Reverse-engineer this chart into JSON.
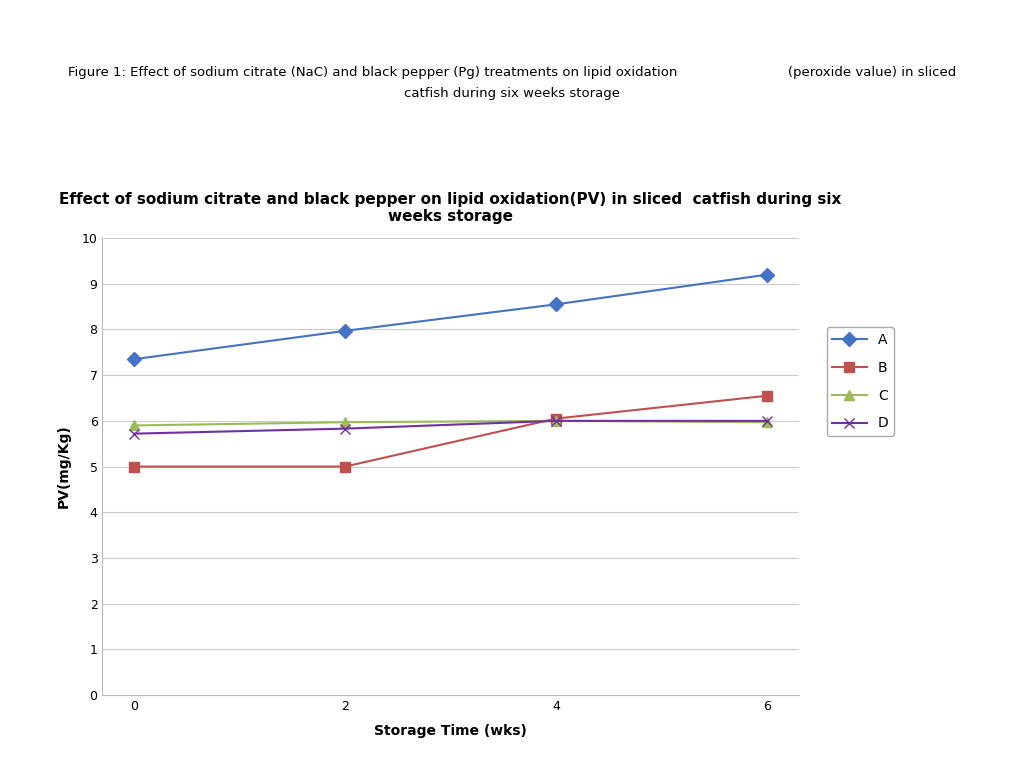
{
  "figure_caption_line1": "Figure 1: Effect of sodium citrate (NaC) and black pepper (Pg) treatments on lipid oxidation                          (peroxide value) in sliced",
  "figure_caption_line2": "catfish during six weeks storage",
  "chart_title_line1": "Effect of sodium citrate and black pepper on lipid oxidation(PV) in sliced  catfish during six",
  "chart_title_line2": "weeks storage",
  "xlabel": "Storage Time (wks)",
  "ylabel": "PV(mg/Kg)",
  "x_values": [
    0,
    2,
    4,
    6
  ],
  "series": {
    "A": {
      "y": [
        7.35,
        7.97,
        8.55,
        9.2
      ],
      "color": "#4472C4",
      "marker": "D",
      "linewidth": 1.5
    },
    "B": {
      "y": [
        5.0,
        5.0,
        6.05,
        6.55
      ],
      "color": "#C0504D",
      "marker": "s",
      "linewidth": 1.5
    },
    "C": {
      "y": [
        5.9,
        5.97,
        6.0,
        5.97
      ],
      "color": "#9BBB59",
      "marker": "^",
      "linewidth": 1.5
    },
    "D": {
      "y": [
        5.72,
        5.83,
        6.0,
        6.0
      ],
      "color": "#7030A0",
      "marker": "x",
      "linewidth": 1.5
    }
  },
  "ylim": [
    0,
    10
  ],
  "yticks": [
    0,
    1,
    2,
    3,
    4,
    5,
    6,
    7,
    8,
    9,
    10
  ],
  "xticks": [
    0,
    2,
    4,
    6
  ],
  "background_color": "#ffffff",
  "grid_color": "#cccccc",
  "title_fontsize": 11,
  "axis_label_fontsize": 10,
  "tick_fontsize": 9,
  "caption_fontsize": 9.5
}
